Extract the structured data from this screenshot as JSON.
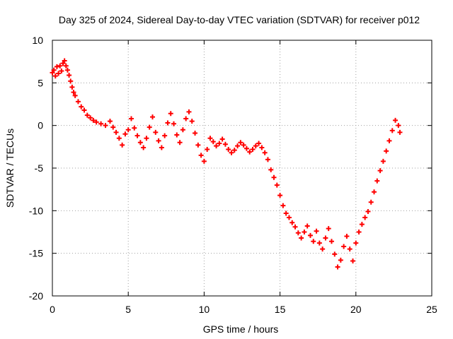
{
  "chart_data": {
    "type": "scatter",
    "title": "Day 325 of 2024, Sidereal Day-to-day VTEC variation (SDTVAR) for receiver p012",
    "xlabel": "GPS time / hours",
    "ylabel": "SDTVAR / TECUs",
    "xlim": [
      0,
      25
    ],
    "ylim": [
      -20,
      10
    ],
    "xticks": [
      0,
      5,
      10,
      15,
      20,
      25
    ],
    "xtick_labels": [
      "0",
      "5",
      "10",
      "15",
      "20",
      "25"
    ],
    "yticks": [
      -20,
      -15,
      -10,
      -5,
      0,
      5,
      10
    ],
    "ytick_labels": [
      "-20",
      "-15",
      "-10",
      "-5",
      "0",
      "5",
      "10"
    ],
    "grid": true,
    "marker": "+",
    "series": [
      {
        "name": "SDTVAR",
        "color": "#ff0000",
        "points": [
          [
            0.0,
            6.2
          ],
          [
            0.1,
            6.5
          ],
          [
            0.2,
            5.8
          ],
          [
            0.3,
            6.9
          ],
          [
            0.4,
            6.1
          ],
          [
            0.5,
            7.0
          ],
          [
            0.6,
            6.4
          ],
          [
            0.7,
            7.3
          ],
          [
            0.8,
            7.6
          ],
          [
            0.9,
            7.0
          ],
          [
            1.0,
            6.5
          ],
          [
            1.1,
            5.9
          ],
          [
            1.2,
            5.2
          ],
          [
            1.3,
            4.5
          ],
          [
            1.4,
            3.9
          ],
          [
            1.5,
            3.5
          ],
          [
            1.7,
            2.8
          ],
          [
            1.9,
            2.2
          ],
          [
            2.1,
            1.8
          ],
          [
            2.3,
            1.2
          ],
          [
            2.5,
            0.9
          ],
          [
            2.7,
            0.6
          ],
          [
            2.9,
            0.4
          ],
          [
            3.2,
            0.2
          ],
          [
            3.5,
            0.0
          ],
          [
            3.8,
            0.5
          ],
          [
            4.0,
            -0.2
          ],
          [
            4.2,
            -0.8
          ],
          [
            4.4,
            -1.5
          ],
          [
            4.6,
            -2.3
          ],
          [
            4.8,
            -1.0
          ],
          [
            5.0,
            -0.5
          ],
          [
            5.2,
            0.8
          ],
          [
            5.4,
            -0.3
          ],
          [
            5.6,
            -1.2
          ],
          [
            5.8,
            -2.0
          ],
          [
            6.0,
            -2.6
          ],
          [
            6.2,
            -1.5
          ],
          [
            6.4,
            -0.2
          ],
          [
            6.6,
            1.0
          ],
          [
            6.8,
            -0.8
          ],
          [
            7.0,
            -1.8
          ],
          [
            7.2,
            -2.6
          ],
          [
            7.4,
            -1.2
          ],
          [
            7.6,
            0.3
          ],
          [
            7.8,
            1.4
          ],
          [
            8.0,
            0.2
          ],
          [
            8.2,
            -1.1
          ],
          [
            8.4,
            -2.0
          ],
          [
            8.6,
            -0.5
          ],
          [
            8.8,
            0.8
          ],
          [
            9.0,
            1.6
          ],
          [
            9.2,
            0.5
          ],
          [
            9.4,
            -0.9
          ],
          [
            9.6,
            -2.3
          ],
          [
            9.8,
            -3.5
          ],
          [
            10.0,
            -4.2
          ],
          [
            10.2,
            -2.8
          ],
          [
            10.4,
            -1.5
          ],
          [
            10.6,
            -1.9
          ],
          [
            10.8,
            -2.4
          ],
          [
            11.0,
            -2.1
          ],
          [
            11.2,
            -1.6
          ],
          [
            11.4,
            -2.2
          ],
          [
            11.6,
            -2.8
          ],
          [
            11.8,
            -3.2
          ],
          [
            12.0,
            -2.9
          ],
          [
            12.2,
            -2.4
          ],
          [
            12.4,
            -2.0
          ],
          [
            12.6,
            -2.3
          ],
          [
            12.8,
            -2.7
          ],
          [
            13.0,
            -3.1
          ],
          [
            13.2,
            -2.8
          ],
          [
            13.4,
            -2.4
          ],
          [
            13.6,
            -2.1
          ],
          [
            13.8,
            -2.6
          ],
          [
            14.0,
            -3.2
          ],
          [
            14.2,
            -4.0
          ],
          [
            14.4,
            -5.2
          ],
          [
            14.6,
            -6.1
          ],
          [
            14.8,
            -7.0
          ],
          [
            15.0,
            -8.2
          ],
          [
            15.2,
            -9.4
          ],
          [
            15.4,
            -10.3
          ],
          [
            15.6,
            -10.8
          ],
          [
            15.8,
            -11.4
          ],
          [
            16.0,
            -11.9
          ],
          [
            16.2,
            -12.6
          ],
          [
            16.4,
            -13.2
          ],
          [
            16.6,
            -12.5
          ],
          [
            16.8,
            -11.8
          ],
          [
            17.0,
            -12.9
          ],
          [
            17.2,
            -13.6
          ],
          [
            17.4,
            -12.4
          ],
          [
            17.6,
            -13.8
          ],
          [
            17.8,
            -14.5
          ],
          [
            18.0,
            -13.2
          ],
          [
            18.2,
            -12.1
          ],
          [
            18.4,
            -13.6
          ],
          [
            18.6,
            -15.1
          ],
          [
            18.8,
            -16.6
          ],
          [
            19.0,
            -15.8
          ],
          [
            19.2,
            -14.2
          ],
          [
            19.4,
            -13.0
          ],
          [
            19.6,
            -14.5
          ],
          [
            19.8,
            -15.9
          ],
          [
            20.0,
            -13.8
          ],
          [
            20.2,
            -12.5
          ],
          [
            20.4,
            -11.6
          ],
          [
            20.6,
            -10.8
          ],
          [
            20.8,
            -10.1
          ],
          [
            21.0,
            -9.0
          ],
          [
            21.2,
            -7.8
          ],
          [
            21.4,
            -6.5
          ],
          [
            21.6,
            -5.3
          ],
          [
            21.8,
            -4.2
          ],
          [
            22.0,
            -3.0
          ],
          [
            22.2,
            -1.8
          ],
          [
            22.4,
            -0.6
          ],
          [
            22.6,
            0.6
          ],
          [
            22.8,
            0.0
          ],
          [
            22.9,
            -0.8
          ]
        ]
      }
    ]
  }
}
